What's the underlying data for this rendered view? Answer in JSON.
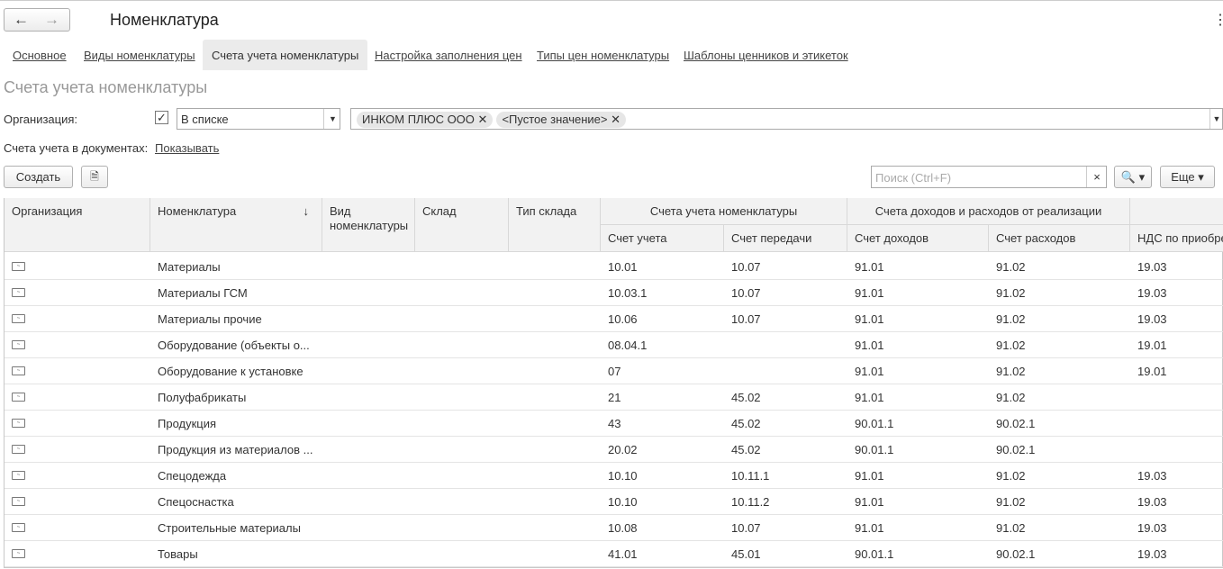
{
  "header": {
    "title": "Номенклатура"
  },
  "tabs": [
    "Основное",
    "Виды номенклатуры",
    "Счета учета номенклатуры",
    "Настройка заполнения цен",
    "Типы цен номенклатуры",
    "Шаблоны ценников и этикеток"
  ],
  "section_title": "Счета учета номенклатуры",
  "filter": {
    "label": "Организация:",
    "mode": "В списке",
    "tags": [
      "ИНКОМ ПЛЮС ООО",
      "<Пустое значение>"
    ]
  },
  "documents": {
    "label": "Счета учета в документах:",
    "link": "Показывать"
  },
  "toolbar": {
    "create": "Создать",
    "search_placeholder": "Поиск (Ctrl+F)",
    "more": "Еще"
  },
  "table": {
    "columns": [
      "Организация",
      "Номенклатура",
      "Вид номенклатуры",
      "Склад",
      "Тип склада",
      {
        "group": "Счета учета номенклатуры",
        "columns": [
          "Счет учета",
          "Счет передачи"
        ]
      },
      {
        "group": "Счета доходов и расходов от реализации",
        "columns": [
          "Счет доходов",
          "Счет расходов"
        ]
      },
      {
        "group": null,
        "columns": [
          "НДС по приобре"
        ]
      }
    ],
    "rows": [
      [
        null,
        "Материалы",
        null,
        null,
        null,
        "10.01",
        "10.07",
        "91.01",
        "91.02",
        "19.03"
      ],
      [
        null,
        "Материалы ГСМ",
        null,
        null,
        null,
        "10.03.1",
        "10.07",
        "91.01",
        "91.02",
        "19.03"
      ],
      [
        null,
        "Материалы прочие",
        null,
        null,
        null,
        "10.06",
        "10.07",
        "91.01",
        "91.02",
        "19.03"
      ],
      [
        null,
        "Оборудование (объекты о...",
        null,
        null,
        null,
        "08.04.1",
        null,
        "91.01",
        "91.02",
        "19.01"
      ],
      [
        null,
        "Оборудование к установке",
        null,
        null,
        null,
        "07",
        null,
        "91.01",
        "91.02",
        "19.01"
      ],
      [
        null,
        "Полуфабрикаты",
        null,
        null,
        null,
        "21",
        "45.02",
        "91.01",
        "91.02",
        null
      ],
      [
        null,
        "Продукция",
        null,
        null,
        null,
        "43",
        "45.02",
        "90.01.1",
        "90.02.1",
        null
      ],
      [
        null,
        "Продукция из материалов ...",
        null,
        null,
        null,
        "20.02",
        "45.02",
        "90.01.1",
        "90.02.1",
        null
      ],
      [
        null,
        "Спецодежда",
        null,
        null,
        null,
        "10.10",
        "10.11.1",
        "91.01",
        "91.02",
        "19.03"
      ],
      [
        null,
        "Спецоснастка",
        null,
        null,
        null,
        "10.10",
        "10.11.2",
        "91.01",
        "91.02",
        "19.03"
      ],
      [
        null,
        "Строительные материалы",
        null,
        null,
        null,
        "10.08",
        "10.07",
        "91.01",
        "91.02",
        "19.03"
      ],
      [
        null,
        "Товары",
        null,
        null,
        null,
        "41.01",
        "45.01",
        "90.01.1",
        "90.02.1",
        "19.03"
      ]
    ]
  }
}
